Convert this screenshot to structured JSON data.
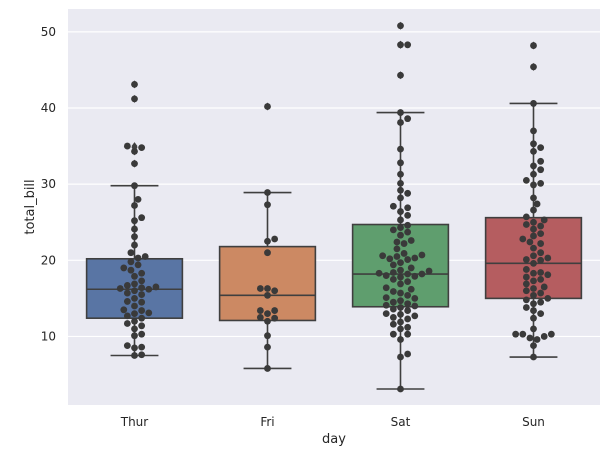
{
  "chart_data": {
    "type": "box",
    "overlay": "swarm",
    "title": "",
    "xlabel": "day",
    "ylabel": "total_bill",
    "ylim": [
      1,
      53
    ],
    "yticks": [
      10,
      20,
      30,
      40,
      50
    ],
    "categories": [
      "Thur",
      "Fri",
      "Sat",
      "Sun"
    ],
    "grid": true,
    "colors": {
      "background": "#eaeaf2",
      "grid": "#ffffff",
      "edge": "#3f3f3f",
      "points": "#3a3a3a",
      "Thur": "#5975a4",
      "Fri": "#cc8963",
      "Sat": "#5f9e6e",
      "Sun": "#b55d60"
    },
    "boxes": [
      {
        "name": "Thur",
        "q1": 12.4,
        "median": 16.2,
        "q3": 20.2,
        "whisker_low": 7.5,
        "whisker_high": 29.8,
        "outliers": [
          43.1,
          41.2,
          35.0,
          34.8,
          34.3,
          32.7
        ]
      },
      {
        "name": "Fri",
        "q1": 12.1,
        "median": 15.4,
        "q3": 21.8,
        "whisker_low": 5.8,
        "whisker_high": 28.9,
        "outliers": [
          40.2
        ]
      },
      {
        "name": "Sat",
        "q1": 13.9,
        "median": 18.2,
        "q3": 24.7,
        "whisker_low": 3.1,
        "whisker_high": 39.4,
        "outliers": [
          50.8,
          48.3,
          48.3,
          44.3
        ]
      },
      {
        "name": "Sun",
        "q1": 15.0,
        "median": 19.6,
        "q3": 25.6,
        "whisker_low": 7.3,
        "whisker_high": 40.6,
        "outliers": [
          48.2,
          45.4
        ]
      }
    ],
    "swarm": {
      "Thur": [
        7.5,
        7.6,
        8.5,
        8.6,
        8.8,
        10.3,
        10.1,
        11.0,
        11.4,
        11.7,
        12.0,
        12.4,
        12.7,
        13.0,
        13.1,
        13.4,
        13.5,
        14.0,
        14.5,
        14.6,
        15.0,
        15.5,
        15.7,
        16.0,
        16.2,
        16.3,
        16.4,
        16.5,
        16.7,
        16.9,
        17.3,
        17.9,
        18.3,
        18.7,
        19.0,
        19.4,
        19.8,
        20.3,
        20.5,
        21.0,
        22.0,
        23.1,
        24.1,
        25.2,
        25.6,
        27.2,
        28.0,
        29.8,
        32.7,
        34.3,
        34.8,
        35.0,
        41.2,
        43.1
      ],
      "Fri": [
        5.8,
        8.6,
        10.1,
        12.0,
        12.4,
        12.5,
        13.0,
        13.4,
        13.4,
        15.4,
        16.0,
        16.3,
        16.3,
        21.0,
        22.5,
        22.8,
        27.3,
        28.9,
        40.2
      ],
      "Sat": [
        3.1,
        7.3,
        7.7,
        9.6,
        10.3,
        10.3,
        11.0,
        11.2,
        11.6,
        11.9,
        12.3,
        12.5,
        12.7,
        12.9,
        13.0,
        13.4,
        13.6,
        13.8,
        14.0,
        14.1,
        14.3,
        14.5,
        14.7,
        15.0,
        15.1,
        15.4,
        15.7,
        15.9,
        16.2,
        16.4,
        16.9,
        17.2,
        17.5,
        17.8,
        17.9,
        18.0,
        18.2,
        18.2,
        18.3,
        18.4,
        18.6,
        18.7,
        19.0,
        19.4,
        19.7,
        20.1,
        20.2,
        20.3,
        20.5,
        20.6,
        20.7,
        20.9,
        21.5,
        22.2,
        22.4,
        22.6,
        23.3,
        23.7,
        24.0,
        24.3,
        24.6,
        25.3,
        25.9,
        26.4,
        26.9,
        27.1,
        28.2,
        28.8,
        29.2,
        30.1,
        31.3,
        32.8,
        34.6,
        38.1,
        38.6,
        39.4,
        44.3,
        48.3,
        48.3,
        50.8
      ],
      "Sun": [
        7.3,
        8.8,
        9.6,
        9.8,
        10.0,
        10.3,
        10.3,
        10.3,
        11.0,
        12.4,
        13.0,
        13.4,
        13.8,
        14.3,
        14.5,
        14.8,
        15.0,
        15.4,
        15.7,
        16.0,
        16.3,
        16.5,
        16.9,
        17.3,
        17.5,
        17.8,
        18.1,
        18.3,
        18.4,
        18.8,
        19.6,
        20.0,
        20.1,
        20.3,
        20.6,
        21.0,
        21.6,
        22.2,
        22.4,
        22.8,
        23.2,
        23.5,
        24.1,
        24.5,
        24.7,
        25.0,
        25.3,
        25.7,
        26.6,
        27.4,
        28.2,
        29.9,
        30.1,
        30.5,
        31.3,
        31.9,
        32.4,
        33.0,
        34.3,
        34.8,
        35.3,
        37.0,
        40.6,
        45.4,
        48.2
      ]
    }
  }
}
